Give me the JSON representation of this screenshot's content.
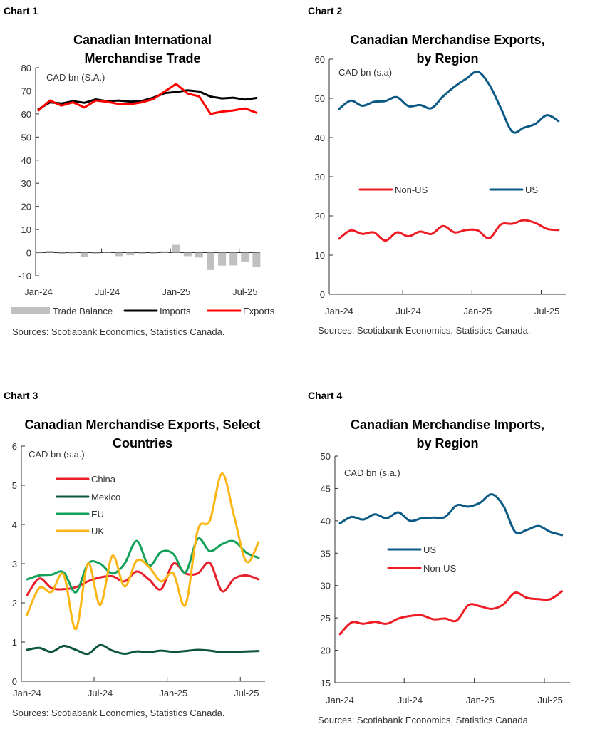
{
  "months": [
    "Jan-24",
    "Feb-24",
    "Mar-24",
    "Apr-24",
    "May-24",
    "Jun-24",
    "Jul-24",
    "Aug-24",
    "Sep-24",
    "Oct-24",
    "Nov-24",
    "Dec-24",
    "Jan-25",
    "Feb-25",
    "Mar-25",
    "Apr-25",
    "May-25",
    "Jun-25",
    "Jul-25",
    "Aug-25"
  ],
  "chart_data": [
    {
      "label": "Chart 1",
      "type": "line",
      "title": [
        "Canadian International",
        "Merchandise Trade"
      ],
      "unit_label": "CAD bn (S.A.)",
      "ylim": [
        -10,
        80
      ],
      "yticks": [
        -10,
        0,
        10,
        20,
        30,
        40,
        50,
        60,
        70,
        80
      ],
      "xticks": [
        "Jan-24",
        "Jul-24",
        "Jan-25",
        "Jul-25"
      ],
      "smooth": false,
      "series": [
        {
          "name": "Trade Balance",
          "kind": "bar",
          "color": "#c0c0c0",
          "values": [
            -0.2,
            0.8,
            -0.6,
            -0.3,
            -1.7,
            -0.4,
            0,
            -1.5,
            -1.1,
            -0.4,
            -0.4,
            0.6,
            3.4,
            -1.5,
            -2.1,
            -7.5,
            -5.6,
            -5.5,
            -3.8,
            -6.3
          ]
        },
        {
          "name": "Imports",
          "kind": "line",
          "color": "#000000",
          "values": [
            62,
            65,
            64.5,
            65.5,
            64.8,
            66.3,
            65.5,
            65.8,
            65.3,
            65.6,
            67,
            69,
            69.5,
            70.2,
            69.7,
            67.5,
            66.7,
            67,
            66.2,
            66.9
          ]
        },
        {
          "name": "Exports",
          "kind": "line",
          "color": "#ff0000",
          "values": [
            61.5,
            65.8,
            63.6,
            65,
            62.8,
            65.8,
            65.2,
            64.3,
            64.2,
            65,
            66.4,
            69.7,
            73,
            68.8,
            67.6,
            60,
            61,
            61.5,
            62.4,
            60.5
          ]
        }
      ],
      "source": "Sources: Scotiabank Economics, Statistics Canada."
    },
    {
      "label": "Chart 2",
      "type": "line",
      "title": [
        "Canadian Merchandise Exports,",
        "by Region"
      ],
      "unit_label": "CAD bn (s.a)",
      "ylim": [
        0,
        60
      ],
      "yticks": [
        0,
        10,
        20,
        30,
        40,
        50,
        60
      ],
      "xticks": [
        "Jan-24",
        "Jul-24",
        "Jan-25",
        "Jul-25"
      ],
      "smooth": true,
      "series": [
        {
          "name": "Non-US",
          "kind": "line",
          "color": "#ee1c25",
          "values": [
            14.2,
            16.3,
            15.4,
            15.8,
            13.7,
            15.8,
            14.8,
            16,
            15.4,
            17.4,
            15.8,
            16.4,
            16.3,
            14.3,
            17.8,
            18,
            18.9,
            18.2,
            16.7,
            16.4
          ]
        },
        {
          "name": "US",
          "kind": "line",
          "color": "#0b5a86",
          "values": [
            47.3,
            49.4,
            48.1,
            49.1,
            49.3,
            50.3,
            48,
            48.3,
            47.5,
            50.5,
            53,
            55,
            56.8,
            53.5,
            47.5,
            41.5,
            42.5,
            43.5,
            45.7,
            44.2
          ]
        }
      ],
      "source": "Sources: Scotiabank Economics, Statistics Canada."
    },
    {
      "label": "Chart 3",
      "type": "line",
      "title": [
        "Canadian Merchandise Exports, Select",
        "Countries"
      ],
      "unit_label": "CAD bn (s.a.)",
      "ylim": [
        0,
        6
      ],
      "yticks": [
        0,
        1,
        2,
        3,
        4,
        5,
        6
      ],
      "xticks": [
        "Jan-24",
        "Jul-24",
        "Jan-25",
        "Jul-25"
      ],
      "smooth": true,
      "series": [
        {
          "name": "China",
          "kind": "line",
          "color": "#e8202a",
          "values": [
            2.2,
            2.62,
            2.38,
            2.35,
            2.4,
            2.55,
            2.65,
            2.68,
            2.55,
            2.8,
            2.6,
            2.35,
            3.0,
            2.75,
            2.75,
            3.02,
            2.3,
            2.62,
            2.7,
            2.6
          ]
        },
        {
          "name": "Mexico",
          "kind": "line",
          "color": "#0d5540",
          "values": [
            0.8,
            0.85,
            0.75,
            0.9,
            0.8,
            0.7,
            0.92,
            0.78,
            0.7,
            0.76,
            0.74,
            0.78,
            0.75,
            0.77,
            0.8,
            0.78,
            0.74,
            0.75,
            0.76,
            0.77
          ]
        },
        {
          "name": "EU",
          "kind": "line",
          "color": "#12a15a",
          "values": [
            2.6,
            2.7,
            2.72,
            2.78,
            2.27,
            3.0,
            3.0,
            2.75,
            3.0,
            3.58,
            2.95,
            3.3,
            3.25,
            2.78,
            3.63,
            3.32,
            3.5,
            3.57,
            3.28,
            3.15
          ]
        },
        {
          "name": "UK",
          "kind": "line",
          "color": "#fbb615",
          "values": [
            1.7,
            2.38,
            2.28,
            2.72,
            1.33,
            3.0,
            1.95,
            3.2,
            2.42,
            3.08,
            2.92,
            2.55,
            2.75,
            1.95,
            3.85,
            4.1,
            5.3,
            4.2,
            3.05,
            3.55
          ]
        }
      ],
      "source": "Sources: Scotiabank Economics, Statistics Canada."
    },
    {
      "label": "Chart 4",
      "type": "line",
      "title": [
        "Canadian Merchandise Imports,",
        "by Region"
      ],
      "unit_label": "CAD bn (s.a.)",
      "ylim": [
        15,
        50
      ],
      "yticks": [
        15,
        20,
        25,
        30,
        35,
        40,
        45,
        50
      ],
      "xticks": [
        "Jan-24",
        "Jul-24",
        "Jan-25",
        "Jul-25"
      ],
      "smooth": true,
      "series": [
        {
          "name": "US",
          "kind": "line",
          "color": "#0b5a86",
          "values": [
            39.6,
            40.6,
            40.2,
            41,
            40.4,
            41.3,
            40,
            40.4,
            40.5,
            40.6,
            42.4,
            42.2,
            42.8,
            44.1,
            42.3,
            38.3,
            38.6,
            39.2,
            38.3,
            37.8
          ]
        },
        {
          "name": "Non-US",
          "kind": "line",
          "color": "#ee1c25",
          "values": [
            22.5,
            24.3,
            24.1,
            24.4,
            24.1,
            24.9,
            25.3,
            25.4,
            24.8,
            24.9,
            24.6,
            27,
            26.8,
            26.4,
            27.1,
            28.9,
            28.1,
            27.9,
            27.9,
            29.1
          ]
        }
      ],
      "source": "Sources: Scotiabank Economics, Statistics Canada."
    }
  ]
}
